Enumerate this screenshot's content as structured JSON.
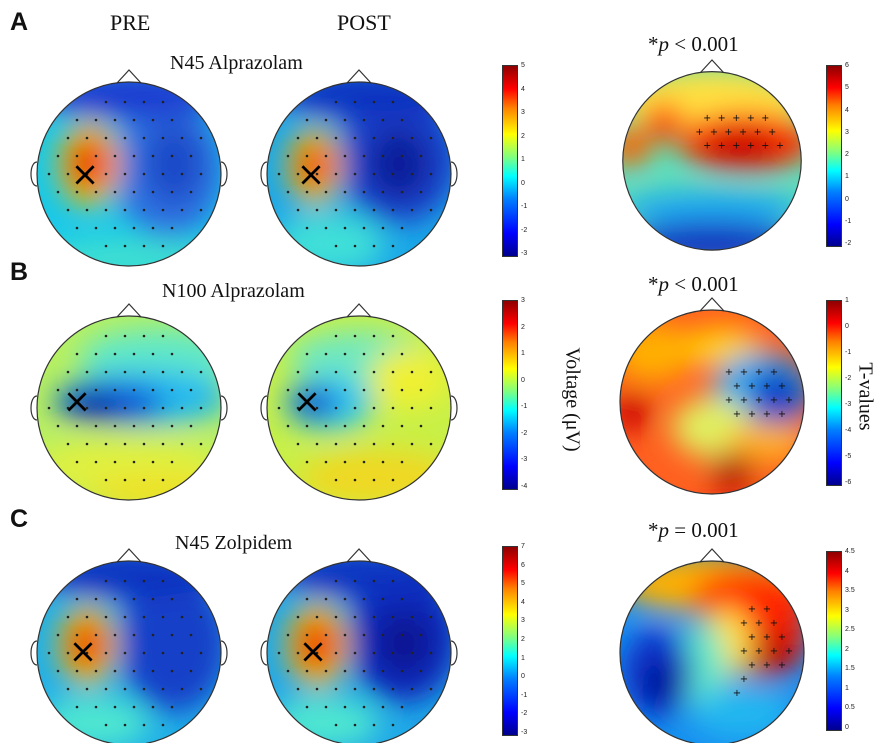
{
  "column_headers": {
    "pre": "PRE",
    "post": "POST"
  },
  "panels": [
    {
      "letter": "A",
      "title": "N45 Alprazolam",
      "p_prefix": "*",
      "p_symbol": "p",
      "p_rest": " < 0.001",
      "voltage_ticks": [
        "5",
        "4",
        "3",
        "2",
        "1",
        "0",
        "-1",
        "-2",
        "-3"
      ],
      "t_ticks": [
        "6",
        "5",
        "4",
        "3",
        "2",
        "1",
        "0",
        "-1",
        "-2"
      ]
    },
    {
      "letter": "B",
      "title": "N100 Alprazolam",
      "p_prefix": "*",
      "p_symbol": "p",
      "p_rest": " < 0.001",
      "voltage_ticks": [
        "3",
        "2",
        "1",
        "0",
        "-1",
        "-2",
        "-3",
        "-4"
      ],
      "t_ticks": [
        "1",
        "0",
        "-1",
        "-2",
        "-3",
        "-4",
        "-5",
        "-6"
      ]
    },
    {
      "letter": "C",
      "title": "N45 Zolpidem",
      "p_prefix": "*",
      "p_symbol": "p",
      "p_rest": " = 0.001",
      "voltage_ticks": [
        "7",
        "6",
        "5",
        "4",
        "3",
        "2",
        "1",
        "0",
        "-1",
        "-2",
        "-3"
      ],
      "t_ticks": [
        "4.5",
        "4",
        "3.5",
        "3",
        "2.5",
        "2",
        "1.5",
        "1",
        "0.5",
        "0"
      ]
    }
  ],
  "axis_labels": {
    "voltage": "Voltage (μV)",
    "t": "T-values"
  },
  "stim_marker": "×",
  "colormap": "jet"
}
